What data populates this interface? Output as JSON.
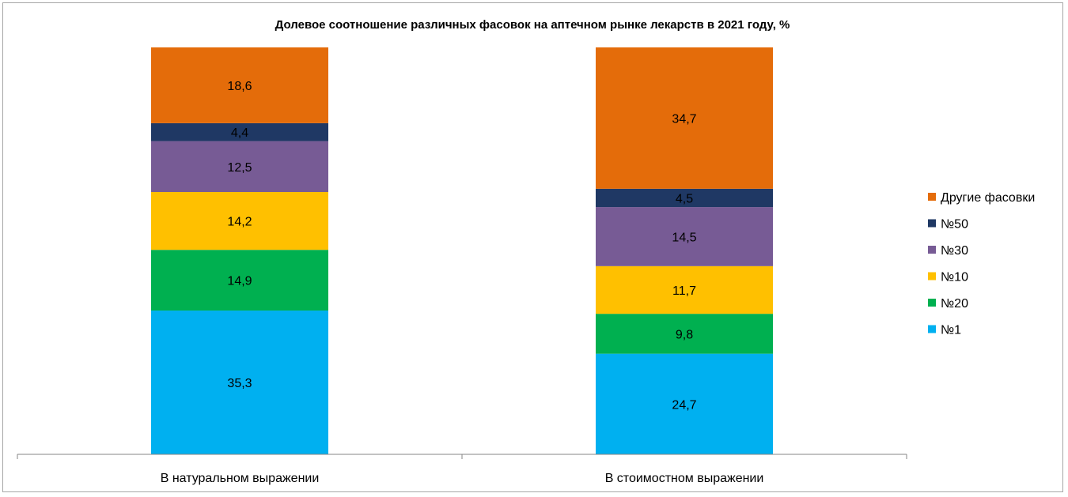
{
  "chart_data": {
    "type": "bar",
    "stacked": true,
    "normalized_to_100_percent": true,
    "title": "Долевое соотношение различных фасовок на аптечном рынке лекарств в 2021 году, %",
    "xlabel": "",
    "ylabel": "",
    "ylim": [
      0,
      100
    ],
    "grid": false,
    "legend_position": "right",
    "categories": [
      "В натуральном выражении",
      "В стоимостном выражении"
    ],
    "series": [
      {
        "name": "№1",
        "color": "#00b0f0",
        "values": [
          35.3,
          24.7
        ],
        "labels": [
          "35,3",
          "24,7"
        ]
      },
      {
        "name": "№20",
        "color": "#00b050",
        "values": [
          14.9,
          9.8
        ],
        "labels": [
          "14,9",
          "9,8"
        ]
      },
      {
        "name": "№10",
        "color": "#ffc000",
        "values": [
          14.2,
          11.7
        ],
        "labels": [
          "14,2",
          "11,7"
        ]
      },
      {
        "name": "№30",
        "color": "#775b95",
        "values": [
          12.5,
          14.5
        ],
        "labels": [
          "12,5",
          "14,5"
        ]
      },
      {
        "name": "№50",
        "color": "#1f3864",
        "values": [
          4.4,
          4.5
        ],
        "labels": [
          "4,4",
          "4,5"
        ]
      },
      {
        "name": "Другие фасовки",
        "color": "#e46c0a",
        "values": [
          18.6,
          34.7
        ],
        "labels": [
          "18,6",
          "34,7"
        ]
      }
    ]
  }
}
